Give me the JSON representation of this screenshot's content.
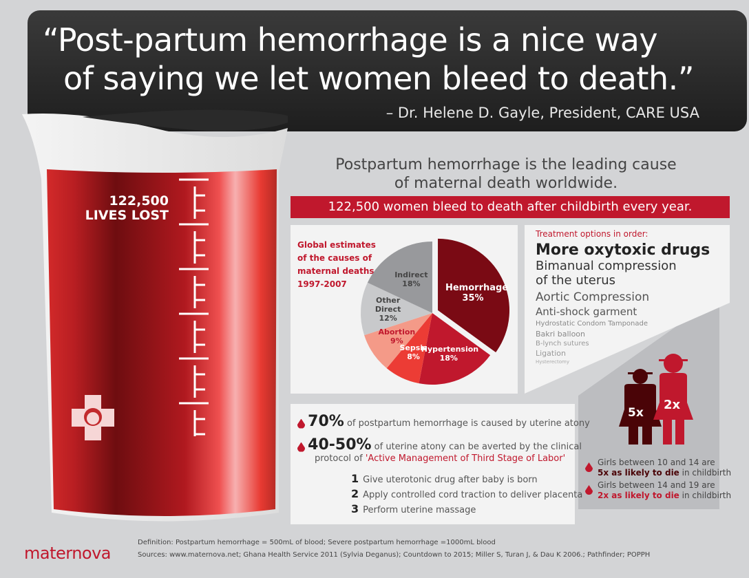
{
  "quote": {
    "line1": "“Post-partum hemorrhage is a nice way",
    "line2": "of saying we let women bleed to death.”",
    "attribution": "– Dr. Helene D. Gayle, President, CARE USA"
  },
  "beaker": {
    "count": "122,500",
    "label": "LIVES LOST",
    "icon": "nurse-cross-icon"
  },
  "headline": {
    "line1": "Postpartum hemorrhage is the leading cause",
    "line2": "of maternal death worldwide."
  },
  "banner": "122,500 women bleed to death after childbirth every year.",
  "chart_data": {
    "type": "pie",
    "title": "Global estimates of the causes of maternal deaths, 1997-2007",
    "title_lines": [
      "Global estimates",
      "of the causes of",
      "maternal deaths,",
      "1997-2007"
    ],
    "slices": [
      {
        "label": "Hemorrhage",
        "value": 35,
        "pct": "35%",
        "color": "#7a0a14",
        "exploded": true
      },
      {
        "label": "Hypertension",
        "value": 18,
        "pct": "18%",
        "color": "#c0182d"
      },
      {
        "label": "Sepsis",
        "value": 8,
        "pct": "8%",
        "color": "#ec3c35"
      },
      {
        "label": "Abortion",
        "value": 9,
        "pct": "9%",
        "color": "#f49a88"
      },
      {
        "label": "Other Direct",
        "value": 12,
        "pct": "12%",
        "color": "#c8c9cb"
      },
      {
        "label": "Indirect",
        "value": 18,
        "pct": "18%",
        "color": "#98999c"
      }
    ]
  },
  "treatment": {
    "heading": "Treatment options in order:",
    "options": [
      "More oxytoxic drugs",
      "Bimanual compression",
      "of the uterus",
      "Aortic Compression",
      "Anti-shock garment",
      "Hydrostatic Condom Tamponade",
      "Bakri balloon",
      "B-lynch sutures",
      "Ligation",
      "Hysterectomy"
    ]
  },
  "facts": {
    "f1_big": "70%",
    "f1_text": " of postpartum hemorrhage is caused by uterine atony",
    "f2_big": "40-50%",
    "f2_text": " of uterine atony can be averted by the clinical",
    "f2_line2": "protocol of ",
    "f2_highlight": "'Active Management of Third Stage of Labor'",
    "steps": [
      {
        "n": "1",
        "t": "Give uterotonic drug after baby is born"
      },
      {
        "n": "2",
        "t": "Apply controlled cord traction to deliver placenta"
      },
      {
        "n": "3",
        "t": "Perform uterine massage"
      }
    ]
  },
  "girls": {
    "g1_mult": "5x",
    "g2_mult": "2x",
    "g1_l1": "Girls between 10 and 14 are",
    "g1_bold": "5x as likely to die",
    "g1_rest": " in childbirth",
    "g2_l1": "Girls between 14 and 19 are",
    "g2_bold": "2x as likely to die",
    "g2_rest": " in childbirth",
    "colors": {
      "younger": "#4a0407",
      "older": "#c0182d"
    }
  },
  "footer": {
    "logo": "maternova",
    "definition": "Definition: Postpartum hemorrhage = 500mL of blood; Severe postpartum hemorrhage =1000mL blood",
    "sources": "Sources:  www.maternova.net; Ghana Health Service 2011 (Sylvia Deganus); Countdown to 2015; Miller S, Turan J, & Dau K 2006.; Pathfinder; POPPH"
  }
}
